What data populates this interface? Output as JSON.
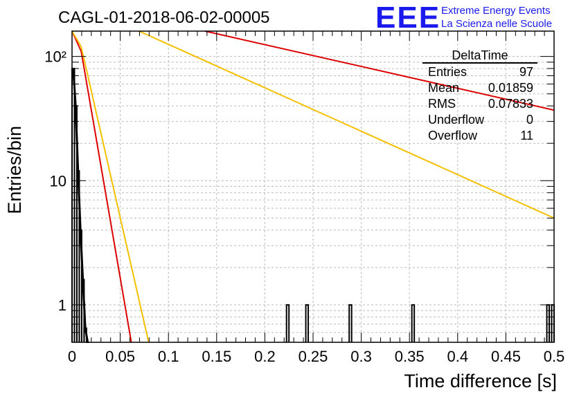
{
  "header": {
    "run_title": "CAGL-01-2018-06-02-00005",
    "logo_text": "EEE",
    "logo_line1": "Extreme Energy Events",
    "logo_line2": "La Scienza nelle Scuole"
  },
  "colors": {
    "logo": "#1a1aee",
    "histogram": "#000000",
    "fit_red": "#dd0000",
    "fit_yellow": "#f5c000",
    "grid": "#bbbbbb"
  },
  "stats": {
    "title": "DeltaTime",
    "rows": [
      {
        "label": "Entries",
        "value": "97"
      },
      {
        "label": "Mean",
        "value": "0.01859"
      },
      {
        "label": "RMS",
        "value": "0.07833"
      },
      {
        "label": "Underflow",
        "value": "0"
      },
      {
        "label": "Overflow",
        "value": "11"
      }
    ]
  },
  "chart_data": {
    "type": "bar",
    "title": "CAGL-01-2018-06-02-00005",
    "xlabel": "Time difference [s]",
    "ylabel": "Entries/bin",
    "xlim": [
      0,
      0.5
    ],
    "ylim": [
      0.5,
      160
    ],
    "yscale": "log",
    "grid": true,
    "legend": "top-right",
    "xticks": [
      "0",
      "0.05",
      "0.1",
      "0.15",
      "0.2",
      "0.25",
      "0.3",
      "0.35",
      "0.4",
      "0.45",
      "0.5"
    ],
    "yticks": [
      {
        "value": 1,
        "label": "1"
      },
      {
        "value": 10,
        "label": "10"
      },
      {
        "value": 100,
        "label": "10²"
      }
    ],
    "histogram": {
      "name": "DeltaTime",
      "bin_width": 0.0025,
      "bins": [
        {
          "x": 0.0,
          "y": 80
        },
        {
          "x": 0.0025,
          "y": 40
        },
        {
          "x": 0.005,
          "y": 12
        },
        {
          "x": 0.0075,
          "y": 4
        },
        {
          "x": 0.01,
          "y": 1.6
        },
        {
          "x": 0.0125,
          "y": 0.65
        },
        {
          "x": 0.015,
          "y": 0.5
        },
        {
          "x": 0.2225,
          "y": 1
        },
        {
          "x": 0.2425,
          "y": 1
        },
        {
          "x": 0.2875,
          "y": 1
        },
        {
          "x": 0.3525,
          "y": 1
        },
        {
          "x": 0.4925,
          "y": 1
        },
        {
          "x": 0.4975,
          "y": 1
        }
      ]
    },
    "series": [
      {
        "color": "red",
        "x": [
          0.0,
          0.0095
        ],
        "y": [
          160,
          110
        ],
        "style": "short"
      },
      {
        "color": "red",
        "x": [
          0.0095,
          0.0615
        ],
        "y": [
          110,
          0.5
        ]
      },
      {
        "color": "yellow",
        "x": [
          0.0,
          0.0095
        ],
        "y": [
          160,
          120
        ]
      },
      {
        "color": "yellow",
        "x": [
          0.0095,
          0.0795
        ],
        "y": [
          120,
          0.5
        ]
      },
      {
        "color": "red",
        "x": [
          0.138,
          0.5
        ],
        "y": [
          160,
          37
        ]
      },
      {
        "color": "yellow",
        "x": [
          0.0695,
          0.5
        ],
        "y": [
          160,
          5
        ]
      }
    ]
  }
}
